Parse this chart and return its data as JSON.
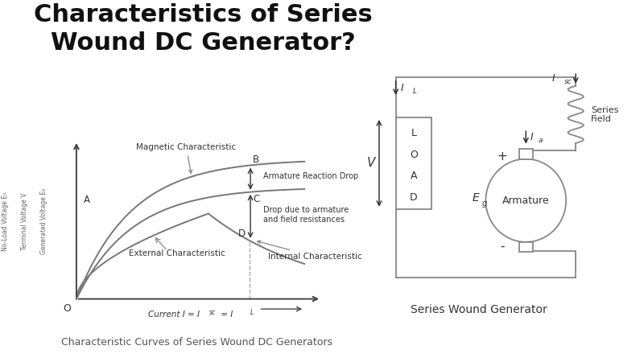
{
  "title_line1": "Characteristics of Series",
  "title_line2": "Wound DC Generator?",
  "title_fontsize": 22,
  "title_fontweight": "bold",
  "subtitle": "Characteristic Curves of Series Wound DC Generators",
  "subtitle_fontsize": 9,
  "bg_color": "#ffffff",
  "curve_color": "#777777",
  "axis_color": "#444444",
  "ylabel_texts": [
    "No-Load Voltage E₀",
    "Terminal Voltage V",
    "Generated Voltage E₉"
  ],
  "xlabel_text": "Current I = I",
  "xlabel_sub": "sc",
  "xlabel_end": " = I",
  "xlabel_sub2": "L",
  "point_A": "A",
  "point_B": "B",
  "point_C": "C",
  "point_D": "D",
  "point_O": "O",
  "ann_magnetic": "Magnetic Characteristic",
  "ann_arm_react": "Armature Reaction Drop",
  "ann_drop": "Drop due to armature\nand field resistances",
  "ann_internal": "Internal Characteristic",
  "ann_external": "External Characteristic",
  "circuit_label": "Series Wound Generator",
  "lbl_Isc": "I",
  "lbl_Isc_sub": "sc",
  "lbl_series_field": "Series\nField",
  "lbl_Ia": "I",
  "lbl_Ia_sub": "a",
  "lbl_IL": "I",
  "lbl_IL_sub": "L",
  "lbl_V": "V",
  "lbl_LOAD": "L\nO\nA\nD",
  "lbl_Eg": "E",
  "lbl_Eg_sub": "g",
  "lbl_Armature": "Armature",
  "lbl_plus": "+",
  "lbl_minus": "-",
  "line_color": "#888888",
  "text_color": "#333333"
}
